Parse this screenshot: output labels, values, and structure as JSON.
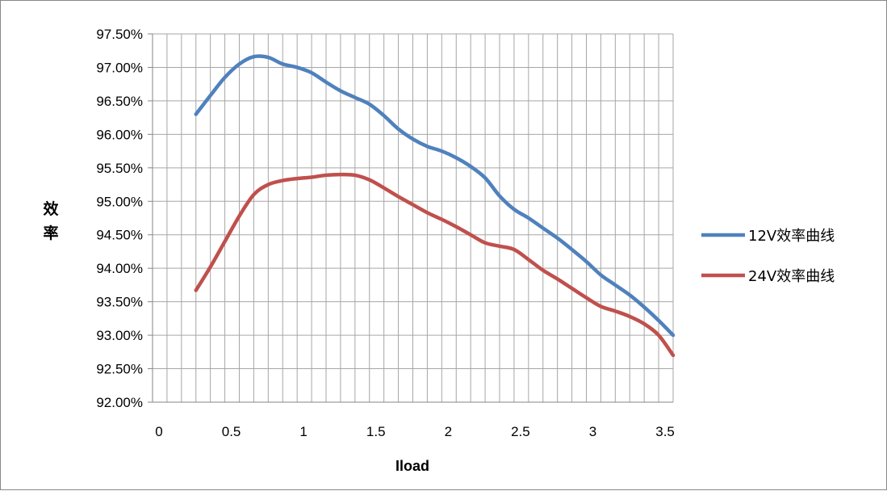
{
  "chart_data": {
    "type": "line",
    "title": "",
    "xlabel": "Iload",
    "ylabel": "效率",
    "xlim": [
      0,
      3.6
    ],
    "ylim": [
      0.92,
      0.975
    ],
    "x_ticks": [
      "0",
      "0.5",
      "1",
      "1.5",
      "2",
      "2.5",
      "3",
      "3.5"
    ],
    "y_ticks": [
      "97.50%",
      "97.00%",
      "96.50%",
      "96.00%",
      "95.50%",
      "95.00%",
      "94.50%",
      "94.00%",
      "93.50%",
      "93.00%",
      "92.50%",
      "92.00%"
    ],
    "grid": true,
    "legend_position": "right",
    "series": [
      {
        "name": "12V效率曲线",
        "color": "#4f81bd",
        "x": [
          0.3,
          0.4,
          0.5,
          0.6,
          0.7,
          0.8,
          0.9,
          1.0,
          1.1,
          1.2,
          1.3,
          1.4,
          1.5,
          1.6,
          1.7,
          1.8,
          1.9,
          2.0,
          2.1,
          2.2,
          2.3,
          2.4,
          2.5,
          2.6,
          2.7,
          2.8,
          2.9,
          3.0,
          3.1,
          3.2,
          3.3,
          3.4,
          3.5,
          3.6
        ],
        "y": [
          0.963,
          0.9658,
          0.9685,
          0.9705,
          0.9716,
          0.9715,
          0.9705,
          0.97,
          0.9692,
          0.9678,
          0.9665,
          0.9655,
          0.9645,
          0.9628,
          0.9608,
          0.9593,
          0.9582,
          0.9575,
          0.9565,
          0.9552,
          0.9535,
          0.9508,
          0.9488,
          0.9475,
          0.946,
          0.9445,
          0.9428,
          0.941,
          0.939,
          0.9375,
          0.936,
          0.9342,
          0.9322,
          0.93
        ]
      },
      {
        "name": "24V效率曲线",
        "color": "#c0504d",
        "x": [
          0.3,
          0.4,
          0.5,
          0.6,
          0.7,
          0.8,
          0.9,
          1.0,
          1.1,
          1.2,
          1.3,
          1.4,
          1.5,
          1.6,
          1.7,
          1.8,
          1.9,
          2.0,
          2.1,
          2.2,
          2.3,
          2.4,
          2.5,
          2.6,
          2.7,
          2.8,
          2.9,
          3.0,
          3.1,
          3.2,
          3.3,
          3.4,
          3.5,
          3.6
        ],
        "y": [
          0.9367,
          0.9402,
          0.944,
          0.9478,
          0.951,
          0.9525,
          0.9531,
          0.9534,
          0.9536,
          0.9539,
          0.954,
          0.9539,
          0.9532,
          0.952,
          0.9507,
          0.9495,
          0.9483,
          0.9473,
          0.9462,
          0.945,
          0.9438,
          0.9433,
          0.9428,
          0.9413,
          0.9397,
          0.9384,
          0.937,
          0.9356,
          0.9343,
          0.9336,
          0.9328,
          0.9317,
          0.93,
          0.927
        ]
      }
    ]
  }
}
